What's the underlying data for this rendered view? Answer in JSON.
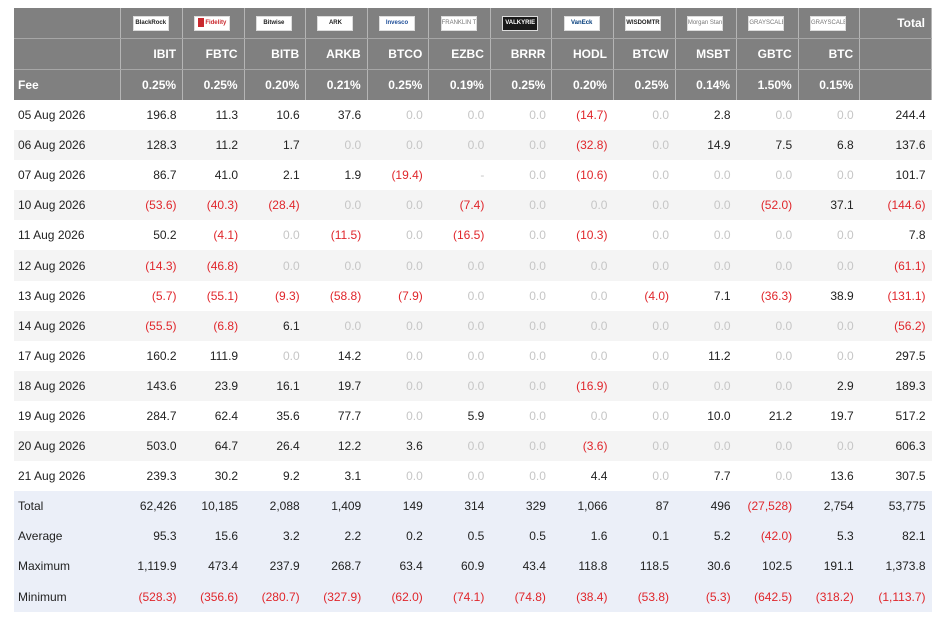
{
  "header": {
    "total_label": "Total",
    "fee_label": "Fee",
    "funds": [
      {
        "ticker": "IBIT",
        "fee": "0.25%",
        "logo_text": "BlackRock",
        "icon": "blackrock-logo"
      },
      {
        "ticker": "FBTC",
        "fee": "0.25%",
        "logo_text": "Fidelity",
        "icon": "fidelity-logo"
      },
      {
        "ticker": "BITB",
        "fee": "0.20%",
        "logo_text": "Bitwise",
        "icon": "bitwise-logo"
      },
      {
        "ticker": "ARKB",
        "fee": "0.21%",
        "logo_text": "ARK",
        "icon": "ark-logo"
      },
      {
        "ticker": "BTCO",
        "fee": "0.25%",
        "logo_text": "Invesco",
        "icon": "invesco-logo"
      },
      {
        "ticker": "EZBC",
        "fee": "0.19%",
        "logo_text": "FRANKLIN TEMPLETON",
        "icon": "franklin-logo"
      },
      {
        "ticker": "BRRR",
        "fee": "0.25%",
        "logo_text": "VALKYRIE",
        "icon": "valkyrie-logo"
      },
      {
        "ticker": "HODL",
        "fee": "0.20%",
        "logo_text": "VanEck",
        "icon": "vaneck-logo"
      },
      {
        "ticker": "BTCW",
        "fee": "0.25%",
        "logo_text": "WISDOMTREE",
        "icon": "wisdomtree-logo"
      },
      {
        "ticker": "MSBT",
        "fee": "0.14%",
        "logo_text": "Morgan Stanley",
        "icon": "morgan-stanley-logo"
      },
      {
        "ticker": "GBTC",
        "fee": "1.50%",
        "logo_text": "GRAYSCALE",
        "icon": "grayscale-logo"
      },
      {
        "ticker": "BTC",
        "fee": "0.15%",
        "logo_text": "GRAYSCALE",
        "icon": "grayscale-logo"
      }
    ]
  },
  "rows": [
    {
      "date": "05 Aug 2026",
      "values": [
        "196.8",
        "11.3",
        "10.6",
        "37.6",
        "0.0",
        "0.0",
        "0.0",
        "(14.7)",
        "0.0",
        "2.8",
        "0.0",
        "0.0"
      ],
      "total": "244.4"
    },
    {
      "date": "06 Aug 2026",
      "values": [
        "128.3",
        "11.2",
        "1.7",
        "0.0",
        "0.0",
        "0.0",
        "0.0",
        "(32.8)",
        "0.0",
        "14.9",
        "7.5",
        "6.8"
      ],
      "total": "137.6"
    },
    {
      "date": "07 Aug 2026",
      "values": [
        "86.7",
        "41.0",
        "2.1",
        "1.9",
        "(19.4)",
        "-",
        "0.0",
        "(10.6)",
        "0.0",
        "0.0",
        "0.0",
        "0.0"
      ],
      "total": "101.7"
    },
    {
      "date": "10 Aug 2026",
      "values": [
        "(53.6)",
        "(40.3)",
        "(28.4)",
        "0.0",
        "0.0",
        "(7.4)",
        "0.0",
        "0.0",
        "0.0",
        "0.0",
        "(52.0)",
        "37.1"
      ],
      "total": "(144.6)"
    },
    {
      "date": "11 Aug 2026",
      "values": [
        "50.2",
        "(4.1)",
        "0.0",
        "(11.5)",
        "0.0",
        "(16.5)",
        "0.0",
        "(10.3)",
        "0.0",
        "0.0",
        "0.0",
        "0.0"
      ],
      "total": "7.8"
    },
    {
      "date": "12 Aug 2026",
      "values": [
        "(14.3)",
        "(46.8)",
        "0.0",
        "0.0",
        "0.0",
        "0.0",
        "0.0",
        "0.0",
        "0.0",
        "0.0",
        "0.0",
        "0.0"
      ],
      "total": "(61.1)"
    },
    {
      "date": "13 Aug 2026",
      "values": [
        "(5.7)",
        "(55.1)",
        "(9.3)",
        "(58.8)",
        "(7.9)",
        "0.0",
        "0.0",
        "0.0",
        "(4.0)",
        "7.1",
        "(36.3)",
        "38.9"
      ],
      "total": "(131.1)"
    },
    {
      "date": "14 Aug 2026",
      "values": [
        "(55.5)",
        "(6.8)",
        "6.1",
        "0.0",
        "0.0",
        "0.0",
        "0.0",
        "0.0",
        "0.0",
        "0.0",
        "0.0",
        "0.0"
      ],
      "total": "(56.2)"
    },
    {
      "date": "17 Aug 2026",
      "values": [
        "160.2",
        "111.9",
        "0.0",
        "14.2",
        "0.0",
        "0.0",
        "0.0",
        "0.0",
        "0.0",
        "11.2",
        "0.0",
        "0.0"
      ],
      "total": "297.5"
    },
    {
      "date": "18 Aug 2026",
      "values": [
        "143.6",
        "23.9",
        "16.1",
        "19.7",
        "0.0",
        "0.0",
        "0.0",
        "(16.9)",
        "0.0",
        "0.0",
        "0.0",
        "2.9"
      ],
      "total": "189.3"
    },
    {
      "date": "19 Aug 2026",
      "values": [
        "284.7",
        "62.4",
        "35.6",
        "77.7",
        "0.0",
        "5.9",
        "0.0",
        "0.0",
        "0.0",
        "10.0",
        "21.2",
        "19.7"
      ],
      "total": "517.2"
    },
    {
      "date": "20 Aug 2026",
      "values": [
        "503.0",
        "64.7",
        "26.4",
        "12.2",
        "3.6",
        "0.0",
        "0.0",
        "(3.6)",
        "0.0",
        "0.0",
        "0.0",
        "0.0"
      ],
      "total": "606.3"
    },
    {
      "date": "21 Aug 2026",
      "values": [
        "239.3",
        "30.2",
        "9.2",
        "3.1",
        "0.0",
        "0.0",
        "0.0",
        "4.4",
        "0.0",
        "7.7",
        "0.0",
        "13.6"
      ],
      "total": "307.5"
    }
  ],
  "summary": [
    {
      "label": "Total",
      "values": [
        "62,426",
        "10,185",
        "2,088",
        "1,409",
        "149",
        "314",
        "329",
        "1,066",
        "87",
        "496",
        "(27,528)",
        "2,754"
      ],
      "total": "53,775"
    },
    {
      "label": "Average",
      "values": [
        "95.3",
        "15.6",
        "3.2",
        "2.2",
        "0.2",
        "0.5",
        "0.5",
        "1.6",
        "0.1",
        "5.2",
        "(42.0)",
        "5.3"
      ],
      "total": "82.1"
    },
    {
      "label": "Maximum",
      "values": [
        "1,119.9",
        "473.4",
        "237.9",
        "268.7",
        "63.4",
        "60.9",
        "43.4",
        "118.8",
        "118.5",
        "30.6",
        "102.5",
        "191.1"
      ],
      "total": "1,373.8"
    },
    {
      "label": "Minimum",
      "values": [
        "(528.3)",
        "(356.6)",
        "(280.7)",
        "(327.9)",
        "(62.0)",
        "(74.1)",
        "(74.8)",
        "(38.4)",
        "(53.8)",
        "(5.3)",
        "(642.5)",
        "(318.2)"
      ],
      "total": "(1,113.7)"
    }
  ],
  "colors": {
    "header_bg": "#808080",
    "negative": "#e0262b",
    "zero": "#c6c6c6",
    "summary_bg": "#ebeff8",
    "stripe_bg": "#f4f4f4"
  }
}
